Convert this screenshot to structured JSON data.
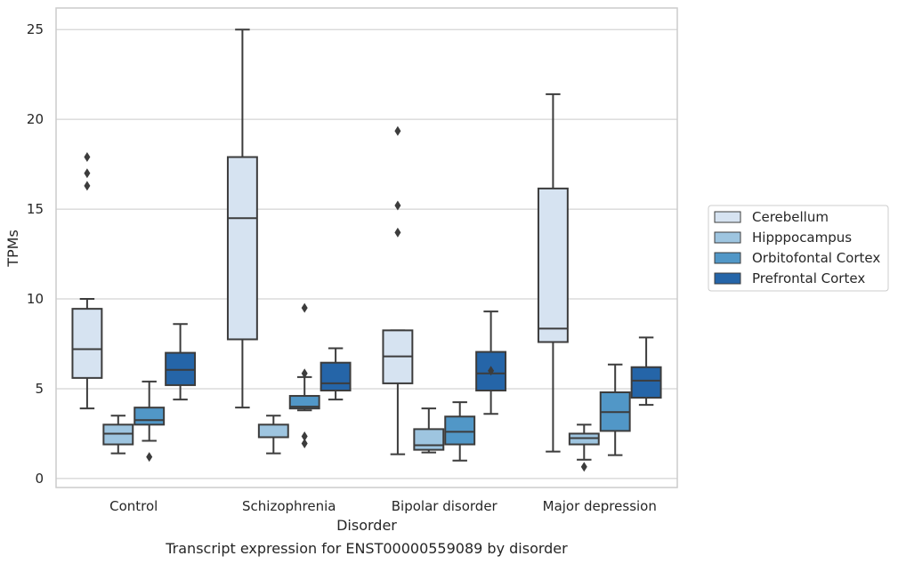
{
  "chart_data": {
    "type": "box",
    "caption": "Transcript expression for ENST00000559089 by disorder",
    "xlabel": "Disorder",
    "ylabel": "TPMs",
    "ylim": [
      -0.5,
      26.2
    ],
    "yticks": [
      0,
      5,
      10,
      15,
      20,
      25
    ],
    "grid": "horizontal",
    "legend_position": "right",
    "categories": [
      "Control",
      "Schizophrenia",
      "Bipolar disorder",
      "Major depression"
    ],
    "series": [
      {
        "name": "Cerebellum",
        "color": "#d6e3f1",
        "boxes": [
          {
            "whislo": 3.9,
            "q1": 5.6,
            "med": 7.2,
            "q3": 9.45,
            "whishi": 10.0,
            "fliers": [
              16.3,
              17.0,
              17.9
            ]
          },
          {
            "whislo": 3.95,
            "q1": 7.75,
            "med": 14.5,
            "q3": 17.9,
            "whishi": 25.0,
            "fliers": []
          },
          {
            "whislo": 1.35,
            "q1": 5.3,
            "med": 6.8,
            "q3": 8.25,
            "whishi": 8.25,
            "fliers": [
              13.7,
              15.2,
              19.35
            ]
          },
          {
            "whislo": 1.5,
            "q1": 7.6,
            "med": 8.35,
            "q3": 16.15,
            "whishi": 21.4,
            "fliers": []
          }
        ]
      },
      {
        "name": "Hipppocampus",
        "color": "#9ec5e0",
        "boxes": [
          {
            "whislo": 1.4,
            "q1": 1.9,
            "med": 2.5,
            "q3": 3.0,
            "whishi": 3.5,
            "fliers": []
          },
          {
            "whislo": 1.4,
            "q1": 2.3,
            "med": 2.3,
            "q3": 3.0,
            "whishi": 3.5,
            "fliers": []
          },
          {
            "whislo": 1.45,
            "q1": 1.6,
            "med": 1.85,
            "q3": 2.75,
            "whishi": 3.9,
            "fliers": []
          },
          {
            "whislo": 1.05,
            "q1": 1.9,
            "med": 2.25,
            "q3": 2.5,
            "whishi": 3.0,
            "fliers": [
              0.65
            ]
          }
        ]
      },
      {
        "name": "Orbitofontal Cortex",
        "color": "#5197c7",
        "boxes": [
          {
            "whislo": 2.1,
            "q1": 3.0,
            "med": 3.25,
            "q3": 3.95,
            "whishi": 5.4,
            "fliers": [
              1.2
            ]
          },
          {
            "whislo": 3.8,
            "q1": 3.9,
            "med": 4.0,
            "q3": 4.6,
            "whishi": 5.65,
            "fliers": [
              1.95,
              2.35,
              5.85,
              9.5
            ]
          },
          {
            "whislo": 1.0,
            "q1": 1.9,
            "med": 2.6,
            "q3": 3.45,
            "whishi": 4.25,
            "fliers": []
          },
          {
            "whislo": 1.3,
            "q1": 2.65,
            "med": 3.7,
            "q3": 4.8,
            "whishi": 6.35,
            "fliers": []
          }
        ]
      },
      {
        "name": "Prefrontal Cortex",
        "color": "#2565a8",
        "boxes": [
          {
            "whislo": 4.4,
            "q1": 5.2,
            "med": 6.05,
            "q3": 7.0,
            "whishi": 8.6,
            "fliers": []
          },
          {
            "whislo": 4.4,
            "q1": 4.9,
            "med": 5.3,
            "q3": 6.45,
            "whishi": 7.25,
            "fliers": []
          },
          {
            "whislo": 3.6,
            "q1": 4.9,
            "med": 5.85,
            "q3": 7.05,
            "whishi": 9.3,
            "fliers": [
              6.0
            ]
          },
          {
            "whislo": 4.1,
            "q1": 4.5,
            "med": 5.45,
            "q3": 6.2,
            "whishi": 7.85,
            "fliers": []
          }
        ]
      }
    ]
  }
}
